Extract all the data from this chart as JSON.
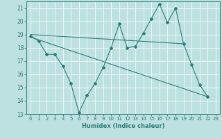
{
  "xlabel": "Humidex (Indice chaleur)",
  "xlim": [
    -0.5,
    23.5
  ],
  "ylim": [
    13,
    21.5
  ],
  "yticks": [
    13,
    14,
    15,
    16,
    17,
    18,
    19,
    20,
    21
  ],
  "xticks": [
    0,
    1,
    2,
    3,
    4,
    5,
    6,
    7,
    8,
    9,
    10,
    11,
    12,
    13,
    14,
    15,
    16,
    17,
    18,
    19,
    20,
    21,
    22,
    23
  ],
  "bg_color": "#bde0e0",
  "line_color": "#2e7d78",
  "grid_color": "#e8f5f5",
  "line1_x": [
    0,
    1,
    2,
    3,
    4,
    5,
    6,
    7,
    8,
    9,
    10,
    11,
    12,
    13,
    14,
    15,
    16,
    17,
    18,
    19,
    20,
    21,
    22
  ],
  "line1_y": [
    18.9,
    18.5,
    17.5,
    17.5,
    16.6,
    15.3,
    13.1,
    14.4,
    15.3,
    16.5,
    18.0,
    19.8,
    18.0,
    18.1,
    19.1,
    20.2,
    21.3,
    19.9,
    21.0,
    18.3,
    16.7,
    15.2,
    14.3
  ],
  "line2_x": [
    0,
    19
  ],
  "line2_y": [
    19.0,
    18.3
  ],
  "line3_x": [
    0,
    22
  ],
  "line3_y": [
    18.8,
    14.3
  ],
  "xtick_fontsize": 5.0,
  "ytick_fontsize": 5.5,
  "xlabel_fontsize": 6.0
}
